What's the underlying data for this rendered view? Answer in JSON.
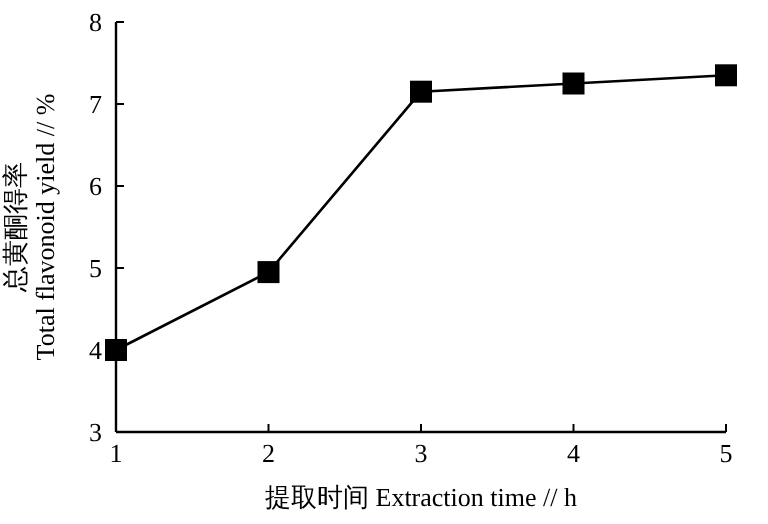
{
  "chart_data": {
    "type": "line",
    "xlabel": "提取时间 Extraction time // h",
    "ylabel": "总黄酮得率\nTotal flavonoid yield // %",
    "x": [
      1,
      2,
      3,
      4,
      5
    ],
    "series": [
      {
        "color": "#000000",
        "values": [
          4.0,
          4.95,
          7.15,
          7.25,
          7.35
        ]
      }
    ],
    "xlim": [
      1,
      5
    ],
    "xticks": [
      1,
      2,
      3,
      4,
      5
    ],
    "ylim": [
      3,
      8
    ],
    "yticks": [
      3,
      4,
      5,
      6,
      7,
      8
    ],
    "marker": "square",
    "line_style": "solid",
    "grid": false
  }
}
